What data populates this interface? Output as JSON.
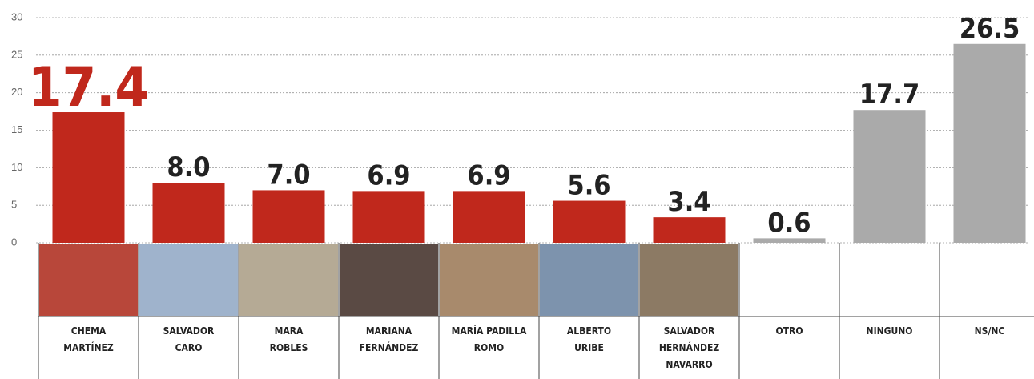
{
  "chart_data": {
    "type": "bar",
    "categories": [
      "CHEMA\nMARTÍNEZ",
      "SALVADOR\nCARO",
      "MARA\nROBLES",
      "MARIANA\nFERNÁNDEZ",
      "MARÍA PADILLA\nROMO",
      "ALBERTO\nURIBE",
      "SALVADOR\nHERNÁNDEZ\nNAVARRO",
      "OTRO",
      "NINGUNO",
      "NS/NC"
    ],
    "values": [
      17.4,
      8.0,
      7.0,
      6.9,
      6.9,
      5.6,
      3.4,
      0.6,
      17.7,
      26.5
    ],
    "value_labels": [
      "17.4",
      "8.0",
      "7.0",
      "6.9",
      "6.9",
      "5.6",
      "3.4",
      "0.6",
      "17.7",
      "26.5"
    ],
    "colors": [
      "#c0281c",
      "#c0281c",
      "#c0281c",
      "#c0281c",
      "#c0281c",
      "#c0281c",
      "#c0281c",
      "#aaaaaa",
      "#aaaaaa",
      "#aaaaaa"
    ],
    "label_colors": [
      "#c0281c",
      "#222222",
      "#222222",
      "#222222",
      "#222222",
      "#222222",
      "#222222",
      "#222222",
      "#222222",
      "#222222"
    ],
    "ylim": [
      0,
      30
    ],
    "yticks": [
      0,
      5,
      10,
      15,
      20,
      25,
      30
    ],
    "grid": true
  }
}
